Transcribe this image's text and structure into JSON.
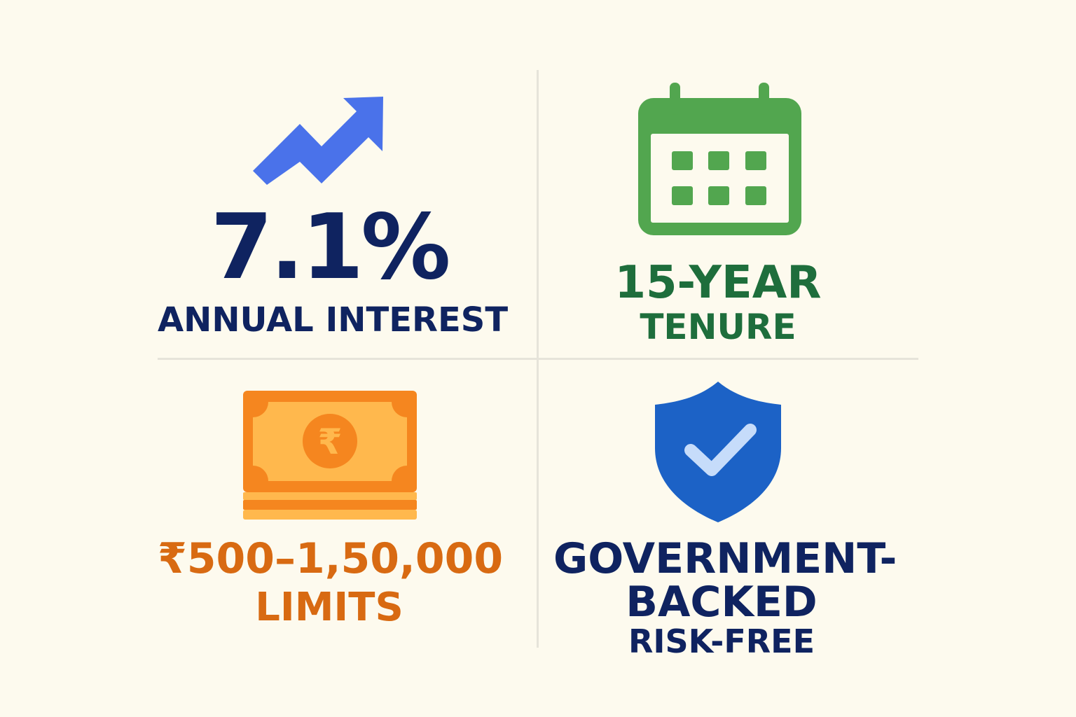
{
  "interest": {
    "value": "7.1%",
    "caption": "ANNUAL INTEREST",
    "icon": "trending-up-arrow-icon",
    "color": "#4a72ea"
  },
  "tenure": {
    "value": "15-YEAR",
    "caption": "TENURE",
    "icon": "calendar-icon",
    "color": "#52a64f"
  },
  "limits": {
    "value": "₹500–1,50,000",
    "caption": "LIMITS",
    "icon": "rupee-banknote-icon",
    "color": "#f5861f"
  },
  "backing": {
    "line1": "GOVERNMENT-",
    "line2": "BACKED",
    "caption": "RISK-FREE",
    "icon": "shield-check-icon",
    "color": "#1c62c6"
  },
  "colors": {
    "background": "#fdfaee",
    "navy_text": "#0f2360",
    "green_text": "#1e6e3c",
    "orange_text": "#d86a12"
  }
}
